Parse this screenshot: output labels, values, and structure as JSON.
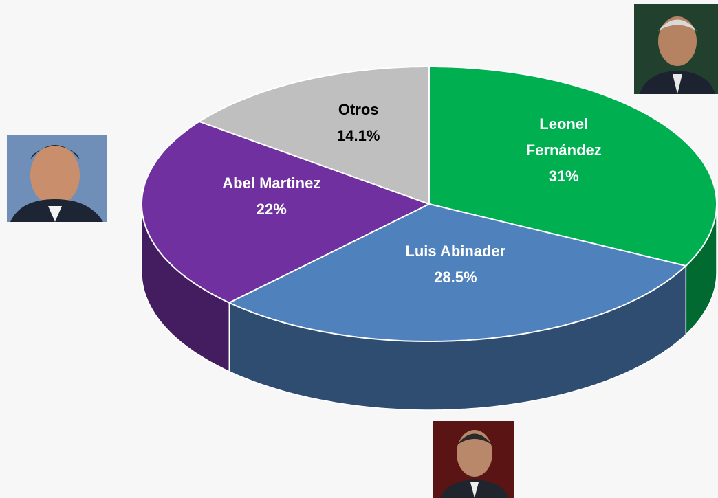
{
  "chart_data": {
    "type": "pie3d",
    "categories": [
      "Leonel Fernández",
      "Luis Abinader",
      "Abel Martinez",
      "Otros"
    ],
    "values": [
      31,
      28.5,
      22,
      14.1
    ],
    "value_labels": [
      "31%",
      "28.5%",
      "22%",
      "14.1%"
    ],
    "colors": [
      "#00b050",
      "#4f81bd",
      "#7030a0",
      "#bfbfbf"
    ],
    "label_colors": [
      "#ffffff",
      "#ffffff",
      "#ffffff",
      "#000000"
    ]
  }
}
